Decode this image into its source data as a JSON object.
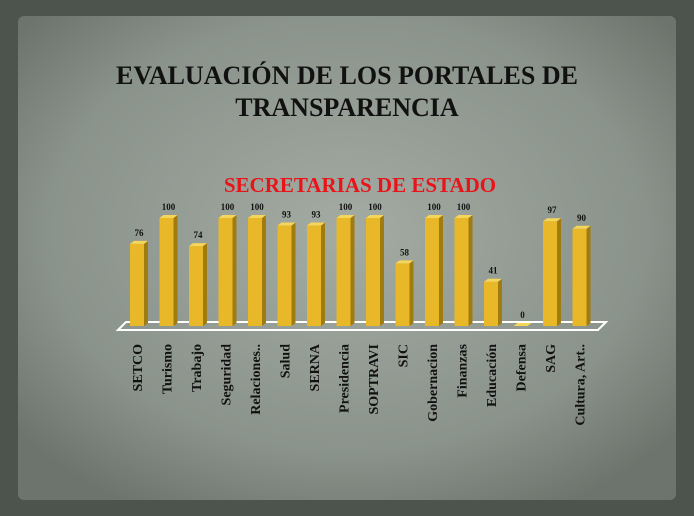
{
  "chart_data": {
    "type": "bar",
    "title": "EVALUACIÓN DE LOS PORTALES DE TRANSPARENCIA",
    "subtitle": "SECRETARIAS DE ESTADO",
    "categories": [
      "SETCO",
      "Turismo",
      "Trabajo",
      "Seguridad",
      "Relaciones..",
      "Salud",
      "SERNA",
      "Presidencia",
      "SOPTRAVI",
      "SIC",
      "Gobernacion",
      "Finanzas",
      "Educación",
      "Defensa",
      "SAG",
      "Cultura, Art.."
    ],
    "values": [
      76,
      100,
      74,
      100,
      100,
      93,
      93,
      100,
      100,
      58,
      100,
      100,
      41,
      0,
      97,
      90
    ],
    "color": "#e8b828"
  }
}
